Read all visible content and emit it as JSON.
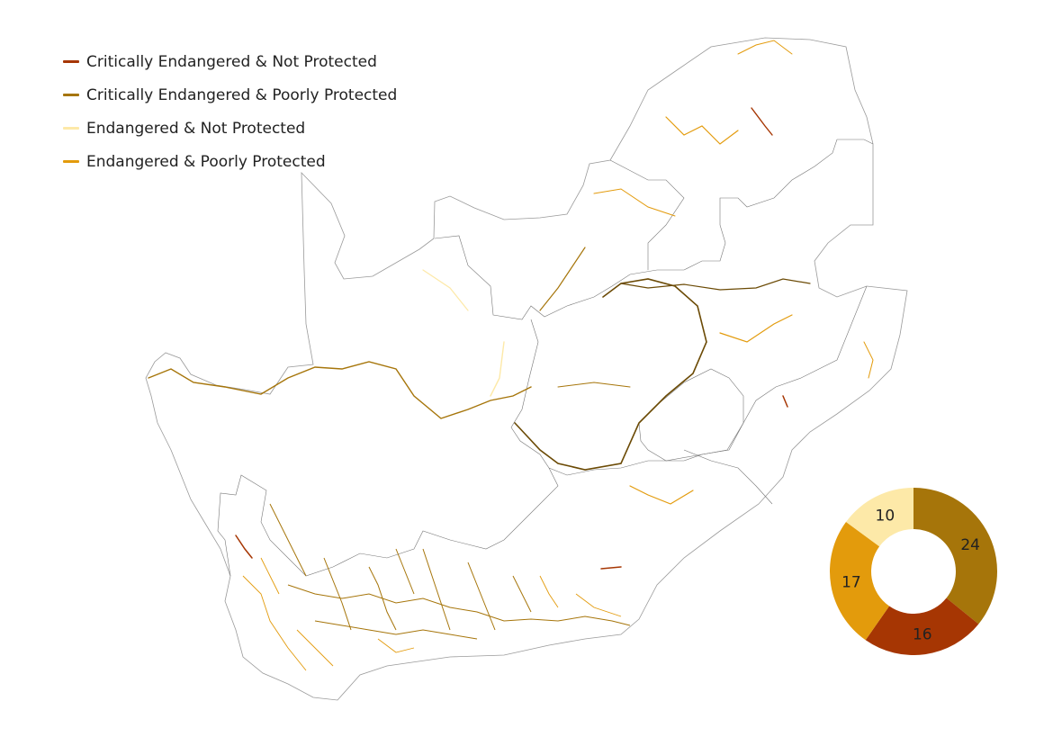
{
  "legend": [
    {
      "label": "Critically Endangered & Not Protected",
      "color": "#a63603"
    },
    {
      "label": "Critically Endangered & Poorly Protected",
      "color": "#a6750a"
    },
    {
      "label": "Endangered & Not Protected",
      "color": "#fde9a8"
    },
    {
      "label": "Endangered & Poorly Protected",
      "color": "#e39b0c"
    }
  ],
  "chart_data": {
    "type": "pie",
    "style": "donut",
    "slices": [
      {
        "category": "Critically Endangered & Poorly Protected",
        "value": 24,
        "color": "#a6750a"
      },
      {
        "category": "Critically Endangered & Not Protected",
        "value": 16,
        "color": "#a63603"
      },
      {
        "category": "Endangered & Poorly Protected",
        "value": 17,
        "color": "#e39b0c"
      },
      {
        "category": "Endangered & Not Protected",
        "value": 10,
        "color": "#fde9a8"
      }
    ]
  }
}
